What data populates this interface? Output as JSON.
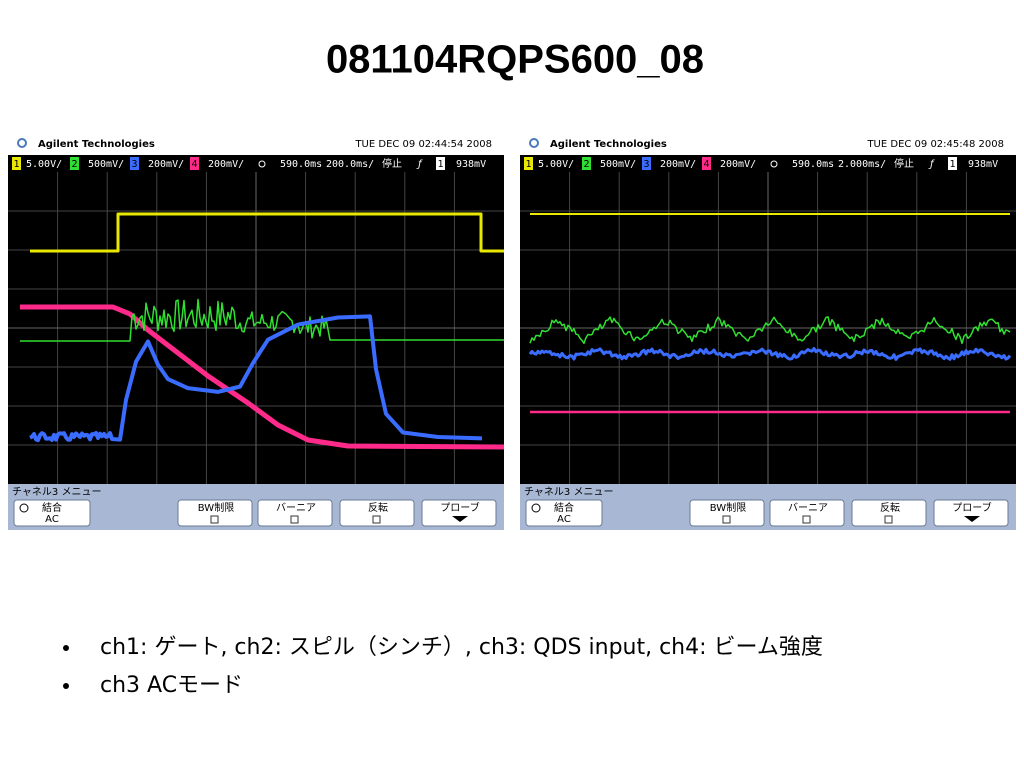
{
  "title": "081104RQPS600_08",
  "scopes": [
    {
      "brand": "Agilent Technologies",
      "timestamp": "TUE DEC 09 02:44:54 2008",
      "status": [
        "1",
        "5.00V/",
        "2",
        "500mV/",
        "3",
        "200mV/",
        "4",
        "200mV/",
        "590.0ms",
        "200.0ms/",
        "停止",
        "1",
        "938mV"
      ],
      "menu_title": "チャネル3 メニュー",
      "buttons": [
        {
          "label": "結合",
          "sub": "AC"
        },
        {
          "label": "BW制限"
        },
        {
          "label": "バーニア"
        },
        {
          "label": "反転"
        },
        {
          "label": "プローブ"
        }
      ]
    },
    {
      "brand": "Agilent Technologies",
      "timestamp": "TUE DEC 09 02:45:48 2008",
      "status": [
        "1",
        "5.00V/",
        "2",
        "500mV/",
        "3",
        "200mV/",
        "4",
        "200mV/",
        "590.0ms",
        "2.000ms/",
        "停止",
        "1",
        "938mV"
      ],
      "menu_title": "チャネル3 メニュー",
      "buttons": [
        {
          "label": "結合",
          "sub": "AC"
        },
        {
          "label": "BW制限"
        },
        {
          "label": "バーニア"
        },
        {
          "label": "反転"
        },
        {
          "label": "プローブ"
        }
      ]
    }
  ],
  "bullets": [
    "ch1: ゲート, ch2: スピル（シンチ）, ch3: QDS input, ch4: ビーム強度",
    "ch3 ACモード"
  ]
}
